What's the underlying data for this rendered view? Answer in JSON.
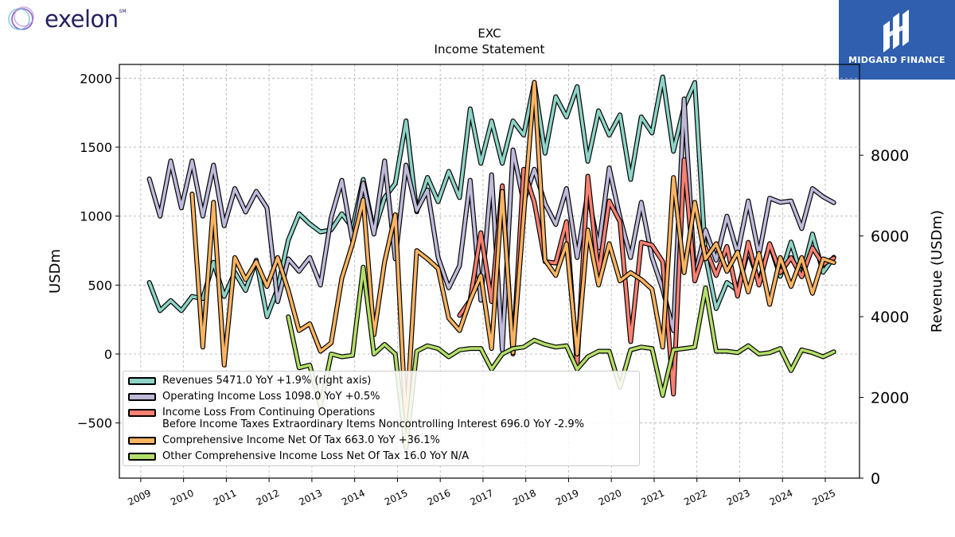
{
  "logos": {
    "left_brand": "exelon",
    "left_mark": "SM",
    "right_brand": "MIDGARD FINANCE"
  },
  "chart_data": {
    "type": "line",
    "title": "EXC",
    "subtitle": "Income Statement",
    "ylabel": "USDm",
    "ylabel_right": "Revenue (USDm)",
    "xlabel": "",
    "grid": true,
    "legend_position": "lower-left",
    "ylim": [
      -900,
      2100
    ],
    "ylim_right": [
      0,
      10250
    ],
    "yticks": [
      -500,
      0,
      500,
      1000,
      1500,
      2000
    ],
    "yticks_right": [
      0,
      2000,
      4000,
      6000,
      8000
    ],
    "xlim": [
      2008.5,
      2025.8
    ],
    "xticks": [
      2009,
      2010,
      2011,
      2012,
      2013,
      2014,
      2015,
      2016,
      2017,
      2018,
      2019,
      2020,
      2021,
      2022,
      2023,
      2024,
      2025
    ],
    "series": [
      {
        "name": "Revenues",
        "legend": "Revenues  5471.0 YoY +1.9% (right axis)",
        "color": "#8dd3c7",
        "axis": "right",
        "x": [
          2009.2,
          2009.45,
          2009.7,
          2009.95,
          2010.2,
          2010.45,
          2010.7,
          2010.95,
          2011.2,
          2011.45,
          2011.7,
          2011.95,
          2012.2,
          2012.45,
          2012.7,
          2012.95,
          2013.2,
          2013.45,
          2013.7,
          2013.95,
          2014.2,
          2014.45,
          2014.7,
          2014.95,
          2015.2,
          2015.45,
          2015.7,
          2015.95,
          2016.2,
          2016.45,
          2016.7,
          2016.95,
          2017.2,
          2017.45,
          2017.7,
          2017.95,
          2018.2,
          2018.45,
          2018.7,
          2018.95,
          2019.2,
          2019.45,
          2019.7,
          2019.95,
          2020.2,
          2020.45,
          2020.7,
          2020.95,
          2021.2,
          2021.45,
          2021.7,
          2021.95,
          2022.2,
          2022.45,
          2022.7,
          2022.95,
          2023.2,
          2023.45,
          2023.7,
          2023.95,
          2024.2,
          2024.45,
          2024.7,
          2024.95,
          2025.2
        ],
        "values": [
          4850,
          4150,
          4400,
          4150,
          4500,
          4450,
          5350,
          4500,
          5100,
          4650,
          5400,
          4000,
          4700,
          5900,
          6550,
          6300,
          6100,
          6150,
          6550,
          6200,
          7400,
          6100,
          6950,
          7300,
          8850,
          6600,
          7450,
          6850,
          7600,
          6950,
          9150,
          7800,
          8850,
          7800,
          8850,
          8500,
          9800,
          8050,
          9450,
          8950,
          9700,
          7850,
          9100,
          8500,
          9000,
          7400,
          8950,
          8550,
          9940,
          8100,
          9200,
          9800,
          5500,
          4200,
          4850,
          4650,
          5650,
          4850,
          5800,
          5000,
          5850,
          5000,
          6050,
          5100,
          5471
        ]
      },
      {
        "name": "Operating Income Loss",
        "legend": "Operating Income Loss  1098.0 YoY +0.5%",
        "color": "#bebada",
        "axis": "left",
        "x": [
          2009.2,
          2009.45,
          2009.7,
          2009.95,
          2010.2,
          2010.45,
          2010.7,
          2010.95,
          2011.2,
          2011.45,
          2011.7,
          2011.95,
          2012.2,
          2012.45,
          2012.7,
          2012.95,
          2013.2,
          2013.45,
          2013.7,
          2013.95,
          2014.2,
          2014.45,
          2014.7,
          2014.95,
          2015.2,
          2015.45,
          2015.7,
          2015.95,
          2016.2,
          2016.45,
          2016.7,
          2016.95,
          2017.2,
          2017.45,
          2017.7,
          2017.95,
          2018.2,
          2018.45,
          2018.7,
          2018.95,
          2019.2,
          2019.45,
          2019.7,
          2019.95,
          2020.2,
          2020.45,
          2020.7,
          2020.95,
          2021.2,
          2021.45,
          2021.7,
          2021.95,
          2022.2,
          2022.45,
          2022.7,
          2022.95,
          2023.2,
          2023.45,
          2023.7,
          2023.95,
          2024.2,
          2024.45,
          2024.7,
          2024.95,
          2025.2
        ],
        "values": [
          1270,
          1000,
          1400,
          1060,
          1400,
          1000,
          1370,
          930,
          1200,
          1030,
          1180,
          1060,
          380,
          690,
          600,
          700,
          500,
          990,
          1260,
          820,
          1240,
          870,
          1400,
          690,
          1370,
          1040,
          1190,
          700,
          480,
          640,
          1260,
          390,
          1300,
          30,
          1480,
          1100,
          1340,
          1090,
          940,
          1200,
          700,
          1170,
          770,
          1350,
          990,
          700,
          1100,
          700,
          470,
          170,
          1850,
          560,
          900,
          680,
          1000,
          730,
          1110,
          720,
          1130,
          1100,
          1110,
          910,
          1200,
          1140,
          1098
        ]
      },
      {
        "name": "Income Loss From Continuing Operations Before Income Taxes Extraordinary Items Noncontrolling Interest",
        "legend_line1": "Income Loss From Continuing Operations",
        "legend_line2": "Before Income Taxes Extraordinary Items Noncontrolling Interest  696.0 YoY -2.9%",
        "color": "#fb8072",
        "axis": "left",
        "x": [
          2016.45,
          2016.7,
          2016.95,
          2017.2,
          2017.45,
          2017.7,
          2017.95,
          2018.2,
          2018.45,
          2018.7,
          2018.95,
          2019.2,
          2019.45,
          2019.7,
          2019.95,
          2020.2,
          2020.45,
          2020.7,
          2020.95,
          2021.2,
          2021.45,
          2021.7,
          2021.95,
          2022.2,
          2022.45,
          2022.7,
          2022.95,
          2023.2,
          2023.45,
          2023.7,
          2023.95,
          2024.2,
          2024.45,
          2024.7,
          2024.95,
          2025.2
        ],
        "values": [
          280,
          390,
          880,
          380,
          1220,
          0,
          1340,
          1100,
          670,
          660,
          960,
          -80,
          1290,
          580,
          1110,
          960,
          90,
          810,
          790,
          670,
          -290,
          1410,
          530,
          770,
          570,
          780,
          420,
          810,
          500,
          800,
          590,
          700,
          560,
          770,
          650,
          696
        ]
      },
      {
        "name": "Comprehensive Income Net Of Tax",
        "legend": "Comprehensive Income Net Of Tax  663.0 YoY +36.1%",
        "color": "#fdb462",
        "axis": "left",
        "x": [
          2010.2,
          2010.45,
          2010.7,
          2010.95,
          2011.2,
          2011.45,
          2011.7,
          2011.95,
          2012.2,
          2012.45,
          2012.7,
          2012.95,
          2013.2,
          2013.45,
          2013.7,
          2013.95,
          2014.2,
          2014.45,
          2014.7,
          2014.95,
          2015.2,
          2015.45,
          2015.7,
          2015.95,
          2016.2,
          2016.45,
          2016.7,
          2016.95,
          2017.2,
          2017.45,
          2017.7,
          2017.95,
          2018.2,
          2018.45,
          2018.7,
          2018.95,
          2019.2,
          2019.45,
          2019.7,
          2019.95,
          2020.2,
          2020.45,
          2020.7,
          2020.95,
          2021.2,
          2021.45,
          2021.7,
          2021.95,
          2022.2,
          2022.45,
          2022.7,
          2022.95,
          2023.2,
          2023.45,
          2023.7,
          2023.95,
          2024.2,
          2024.45,
          2024.7,
          2024.95,
          2025.2
        ],
        "values": [
          1160,
          50,
          1100,
          -80,
          700,
          540,
          670,
          490,
          700,
          460,
          170,
          220,
          20,
          80,
          550,
          800,
          1120,
          140,
          670,
          1010,
          -520,
          750,
          690,
          620,
          260,
          170,
          390,
          570,
          40,
          1180,
          10,
          1000,
          1970,
          680,
          570,
          800,
          0,
          900,
          500,
          800,
          530,
          590,
          540,
          470,
          50,
          1280,
          590,
          1100,
          690,
          800,
          600,
          740,
          450,
          730,
          360,
          700,
          490,
          700,
          440,
          690,
          663
        ]
      },
      {
        "name": "Other Comprehensive Income Loss Net Of Tax",
        "legend": "Other Comprehensive Income Loss Net Of Tax  16.0 YoY N/A",
        "color": "#b3de69",
        "axis": "left",
        "x": [
          2012.45,
          2012.7,
          2012.95,
          2013.2,
          2013.45,
          2013.7,
          2013.95,
          2014.2,
          2014.45,
          2014.7,
          2014.95,
          2015.2,
          2015.45,
          2015.7,
          2015.95,
          2016.2,
          2016.45,
          2016.7,
          2016.95,
          2017.2,
          2017.45,
          2017.7,
          2017.95,
          2018.2,
          2018.45,
          2018.7,
          2018.95,
          2019.2,
          2019.45,
          2019.7,
          2019.95,
          2020.2,
          2020.45,
          2020.7,
          2020.95,
          2021.2,
          2021.45,
          2021.7,
          2021.95,
          2022.2,
          2022.45,
          2022.7,
          2022.95,
          2023.2,
          2023.45,
          2023.7,
          2023.95,
          2024.2,
          2024.45,
          2024.7,
          2024.95,
          2025.2
        ],
        "values": [
          270,
          -100,
          -80,
          -380,
          0,
          -20,
          -10,
          630,
          0,
          70,
          0,
          -680,
          20,
          60,
          40,
          -20,
          30,
          40,
          40,
          -110,
          0,
          40,
          50,
          100,
          70,
          50,
          60,
          -110,
          -20,
          20,
          20,
          -240,
          30,
          50,
          40,
          -300,
          30,
          40,
          50,
          480,
          20,
          20,
          10,
          60,
          0,
          10,
          40,
          -120,
          30,
          10,
          -20,
          16
        ]
      }
    ]
  }
}
